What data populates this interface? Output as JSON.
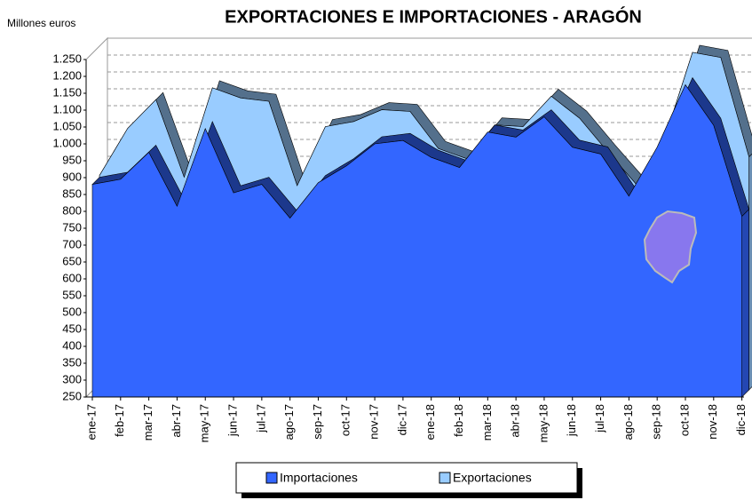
{
  "chart_data": {
    "type": "area3d",
    "title": "EXPORTACIONES E IMPORTACIONES - ARAGÓN",
    "y_label": "Millones euros",
    "categories": [
      "ene-17",
      "feb-17",
      "mar-17",
      "abr-17",
      "may-17",
      "jun-17",
      "jul-17",
      "ago-17",
      "sep-17",
      "oct-17",
      "nov-17",
      "dic-17",
      "ene-18",
      "feb-18",
      "mar-18",
      "abr-18",
      "may-18",
      "jun-18",
      "jul-18",
      "ago-18",
      "sep-18",
      "oct-18",
      "nov-18",
      "dic-18"
    ],
    "series": [
      {
        "name": "Importaciones",
        "color": "#3366ff",
        "values": [
          880,
          895,
          975,
          815,
          1045,
          855,
          880,
          780,
          885,
          935,
          1000,
          1010,
          960,
          930,
          1035,
          1020,
          1080,
          990,
          970,
          845,
          990,
          1175,
          1055,
          785
        ]
      },
      {
        "name": "Exportaciones",
        "color": "#99ccff",
        "values": [
          885,
          1025,
          1110,
          880,
          1145,
          1115,
          1105,
          855,
          1030,
          1045,
          1080,
          1075,
          965,
          935,
          1035,
          1030,
          1120,
          1055,
          955,
          860,
          990,
          1250,
          1235,
          940
        ]
      }
    ],
    "ylim": [
      250,
      1250
    ],
    "yticks": [
      250,
      300,
      350,
      400,
      450,
      500,
      550,
      600,
      650,
      700,
      750,
      800,
      850,
      900,
      950,
      {
        "value": 1000,
        "label": "1.000"
      },
      {
        "value": 1050,
        "label": "1.050"
      },
      {
        "value": 1100,
        "label": "1.100"
      },
      {
        "value": 1150,
        "label": "1.150"
      },
      {
        "value": 1200,
        "label": "1.200"
      },
      {
        "value": 1250,
        "label": "1.250"
      }
    ],
    "grid": true
  }
}
